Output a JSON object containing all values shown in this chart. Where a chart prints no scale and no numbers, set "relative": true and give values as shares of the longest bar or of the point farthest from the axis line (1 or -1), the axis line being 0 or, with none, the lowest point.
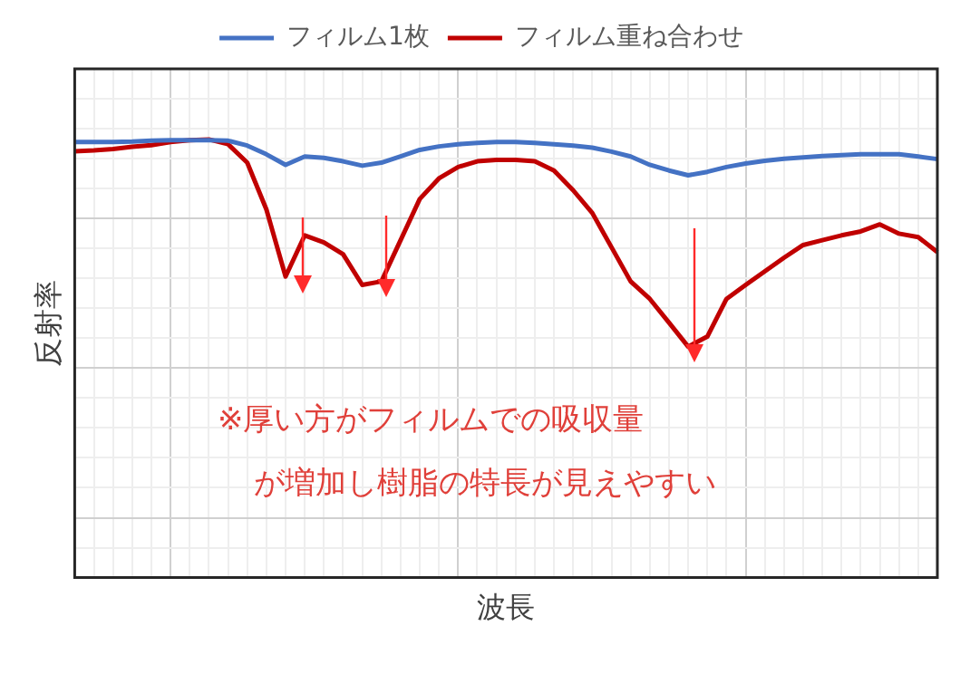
{
  "chart_data": {
    "type": "line",
    "relative": true,
    "xlabel": "波長",
    "ylabel": "反射率",
    "grid": true,
    "legend": "top",
    "marker": "none",
    "line_style": "solid",
    "categories": [
      null,
      null,
      null,
      null,
      null,
      null,
      null,
      null,
      null,
      null,
      null,
      null,
      null,
      null,
      null,
      null,
      null,
      null,
      null,
      null,
      null,
      null,
      null,
      null,
      null,
      null,
      null,
      null,
      null,
      null,
      null,
      null,
      null,
      null,
      null,
      null,
      null,
      null,
      null,
      null,
      null,
      null,
      null,
      null,
      null,
      null
    ],
    "series": [
      {
        "name": "フィルム1枚",
        "color": "#4472c4",
        "values": [
          0.994,
          0.994,
          0.994,
          0.995,
          0.997,
          0.998,
          0.998,
          0.998,
          0.997,
          0.986,
          0.966,
          0.942,
          0.961,
          0.958,
          0.95,
          0.94,
          0.947,
          0.961,
          0.976,
          0.984,
          0.989,
          0.992,
          0.994,
          0.994,
          0.992,
          0.989,
          0.986,
          0.981,
          0.972,
          0.961,
          0.942,
          0.929,
          0.918,
          0.926,
          0.937,
          0.945,
          0.951,
          0.956,
          0.959,
          0.962,
          0.964,
          0.966,
          0.966,
          0.966,
          0.961,
          0.955
        ]
      },
      {
        "name": "フィルム重ね合わせ",
        "color": "#c00000",
        "values": [
          0.973,
          0.975,
          0.978,
          0.983,
          0.987,
          0.994,
          0.998,
          1.0,
          0.989,
          0.947,
          0.84,
          0.687,
          0.781,
          0.765,
          0.738,
          0.668,
          0.676,
          0.77,
          0.864,
          0.911,
          0.937,
          0.95,
          0.953,
          0.953,
          0.95,
          0.929,
          0.884,
          0.832,
          0.754,
          0.676,
          0.636,
          0.582,
          0.527,
          0.55,
          0.636,
          0.668,
          0.699,
          0.73,
          0.759,
          0.77,
          0.781,
          0.79,
          0.806,
          0.785,
          0.777,
          0.743
        ]
      }
    ],
    "annotations": [
      "※厚い方がフィルムでの吸収量",
      "が増加し樹脂の特長が見えやすい"
    ]
  }
}
